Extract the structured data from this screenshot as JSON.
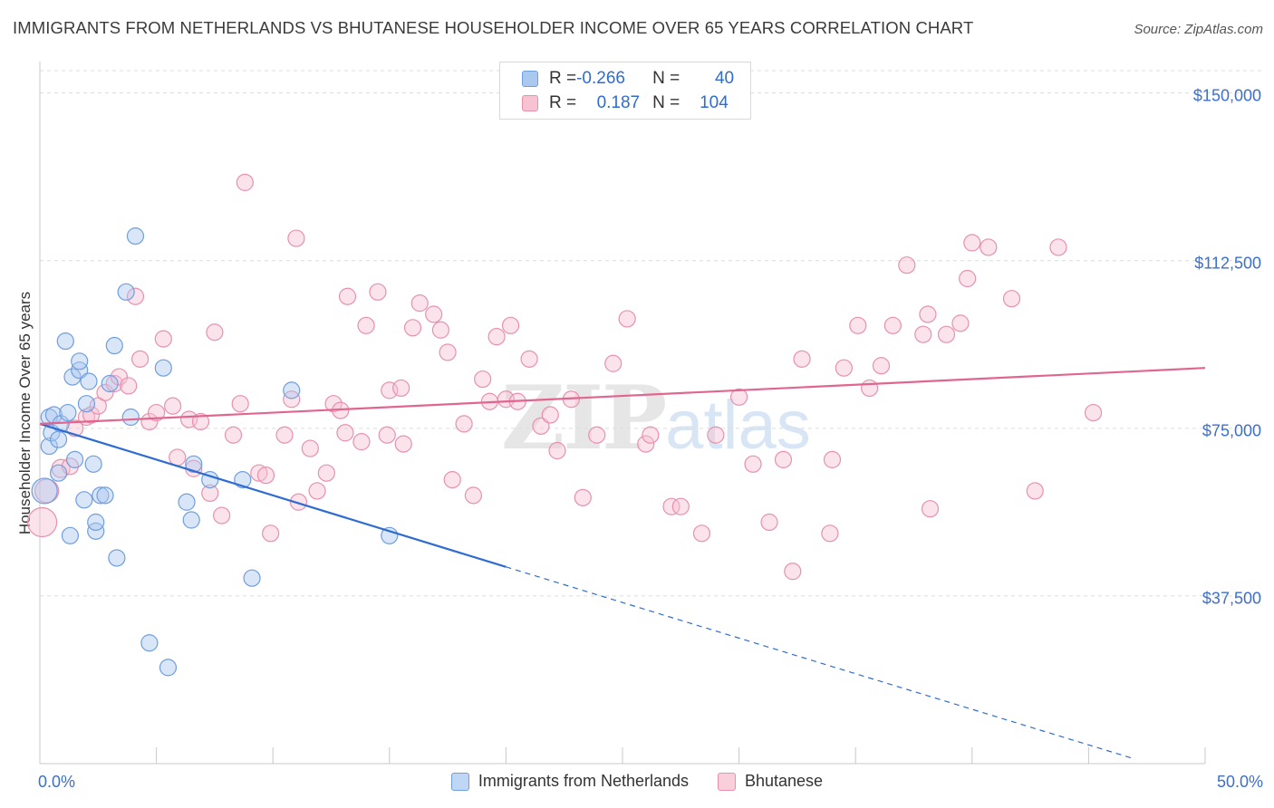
{
  "title": "IMMIGRANTS FROM NETHERLANDS VS BHUTANESE HOUSEHOLDER INCOME OVER 65 YEARS CORRELATION CHART",
  "source": "Source: ZipAtlas.com",
  "watermark": {
    "left": "ZIP",
    "right": "atlas"
  },
  "legend": {
    "rows": [
      {
        "r_label": "R = ",
        "r_value": "-0.266",
        "n_label": "N = ",
        "n_value": "40",
        "color": "#aac8f0",
        "border": "#6f9ee0"
      },
      {
        "r_label": "R = ",
        "r_value": "0.187",
        "n_label": "N = ",
        "n_value": "104",
        "color": "#f7c2d2",
        "border": "#e891ad"
      }
    ]
  },
  "bottom_legend": [
    "Immigrants from Netherlands",
    "Bhutanese"
  ],
  "chart_data": {
    "type": "scatter",
    "title": "IMMIGRANTS FROM NETHERLANDS VS BHUTANESE HOUSEHOLDER INCOME OVER 65 YEARS CORRELATION CHART",
    "xlabel": "",
    "ylabel": "Householder Income Over 65 years",
    "xlim": [
      0,
      50
    ],
    "ylim": [
      0,
      155000
    ],
    "x_tick_labels": [
      "0.0%",
      "50.0%"
    ],
    "y_ticks": [
      37500,
      75000,
      112500,
      150000
    ],
    "y_tick_labels": [
      "$37,500",
      "$75,000",
      "$112,500",
      "$150,000"
    ],
    "grid": true,
    "colors": {
      "blue": "#6f9ee0",
      "blue_fill": "#aac8f0",
      "pink": "#e891ad",
      "pink_fill": "#f7c2d2",
      "blue_line": "#2f6cd0",
      "pink_line": "#e0668f"
    },
    "series": [
      {
        "name": "Immigrants from Netherlands",
        "color": "blue",
        "trend": {
          "x0": 0,
          "y0": 76000,
          "x1": 20,
          "y1": 44000,
          "dash_to_x": 47,
          "dash_to_y": 1000
        },
        "points": [
          [
            0.2,
            61000,
            14
          ],
          [
            0.4,
            71000,
            9
          ],
          [
            0.4,
            77500,
            9
          ],
          [
            0.5,
            74000,
            9
          ],
          [
            0.6,
            78000,
            9
          ],
          [
            0.8,
            72500,
            9
          ],
          [
            0.8,
            65000,
            9
          ],
          [
            0.9,
            76000,
            9
          ],
          [
            1.1,
            94500,
            9
          ],
          [
            1.2,
            78500,
            9
          ],
          [
            1.3,
            51000,
            9
          ],
          [
            1.4,
            86500,
            9
          ],
          [
            1.5,
            68000,
            9
          ],
          [
            1.7,
            88000,
            9
          ],
          [
            1.7,
            90000,
            9
          ],
          [
            1.9,
            59000,
            9
          ],
          [
            2.0,
            80500,
            9
          ],
          [
            2.1,
            85500,
            9
          ],
          [
            2.3,
            67000,
            9
          ],
          [
            2.4,
            52000,
            9
          ],
          [
            2.4,
            54000,
            9
          ],
          [
            2.6,
            60000,
            9
          ],
          [
            2.8,
            60000,
            9
          ],
          [
            3.0,
            85000,
            9
          ],
          [
            3.2,
            93500,
            9
          ],
          [
            3.3,
            46000,
            9
          ],
          [
            3.7,
            105500,
            9
          ],
          [
            3.9,
            77500,
            9
          ],
          [
            4.1,
            118000,
            9
          ],
          [
            4.7,
            27000,
            9
          ],
          [
            5.3,
            88500,
            9
          ],
          [
            5.5,
            21500,
            9
          ],
          [
            6.3,
            58500,
            9
          ],
          [
            6.5,
            54500,
            9
          ],
          [
            6.6,
            67000,
            9
          ],
          [
            7.3,
            63500,
            9
          ],
          [
            8.7,
            63500,
            9
          ],
          [
            9.1,
            41500,
            9
          ],
          [
            10.8,
            83500,
            9
          ],
          [
            15.0,
            51000,
            9
          ]
        ]
      },
      {
        "name": "Bhutanese",
        "color": "pink",
        "trend": {
          "x0": 0,
          "y0": 76000,
          "x1": 50,
          "y1": 88500
        },
        "points": [
          [
            0.1,
            54000,
            16
          ],
          [
            0.3,
            61000,
            13
          ],
          [
            0.9,
            66000,
            10
          ],
          [
            1.3,
            66500,
            9
          ],
          [
            1.5,
            75000,
            9
          ],
          [
            2.0,
            77500,
            9
          ],
          [
            2.2,
            78000,
            9
          ],
          [
            2.5,
            80000,
            9
          ],
          [
            2.8,
            83000,
            9
          ],
          [
            3.2,
            85000,
            9
          ],
          [
            3.4,
            86500,
            9
          ],
          [
            3.8,
            84500,
            9
          ],
          [
            4.1,
            104500,
            9
          ],
          [
            4.3,
            90500,
            9
          ],
          [
            4.7,
            76500,
            9
          ],
          [
            5.0,
            78500,
            9
          ],
          [
            5.3,
            95000,
            9
          ],
          [
            5.7,
            80000,
            9
          ],
          [
            5.9,
            68500,
            9
          ],
          [
            6.4,
            77000,
            9
          ],
          [
            6.6,
            66000,
            9
          ],
          [
            6.9,
            76500,
            9
          ],
          [
            7.3,
            60500,
            9
          ],
          [
            7.5,
            96500,
            9
          ],
          [
            7.8,
            55500,
            9
          ],
          [
            8.3,
            73500,
            9
          ],
          [
            8.6,
            80500,
            9
          ],
          [
            8.8,
            130000,
            9
          ],
          [
            9.4,
            65000,
            9
          ],
          [
            9.7,
            64500,
            9
          ],
          [
            9.9,
            51500,
            9
          ],
          [
            10.5,
            73500,
            9
          ],
          [
            10.8,
            81500,
            9
          ],
          [
            11.0,
            117500,
            9
          ],
          [
            11.1,
            58500,
            9
          ],
          [
            11.6,
            70500,
            9
          ],
          [
            11.9,
            61000,
            9
          ],
          [
            12.3,
            65000,
            9
          ],
          [
            12.6,
            80500,
            9
          ],
          [
            12.9,
            79000,
            9
          ],
          [
            13.1,
            74000,
            9
          ],
          [
            13.2,
            104500,
            9
          ],
          [
            13.8,
            72000,
            9
          ],
          [
            14.0,
            98000,
            9
          ],
          [
            14.5,
            105500,
            9
          ],
          [
            14.9,
            73500,
            9
          ],
          [
            15.0,
            83500,
            9
          ],
          [
            15.5,
            84000,
            9
          ],
          [
            15.6,
            71500,
            9
          ],
          [
            16.0,
            97500,
            9
          ],
          [
            16.3,
            103000,
            9
          ],
          [
            16.9,
            100500,
            9
          ],
          [
            17.2,
            97000,
            9
          ],
          [
            17.5,
            92000,
            9
          ],
          [
            17.7,
            63500,
            9
          ],
          [
            18.2,
            76000,
            9
          ],
          [
            18.6,
            60000,
            9
          ],
          [
            19.0,
            86000,
            9
          ],
          [
            19.3,
            81000,
            9
          ],
          [
            19.6,
            95500,
            9
          ],
          [
            20.0,
            81500,
            9
          ],
          [
            20.2,
            98000,
            9
          ],
          [
            20.5,
            81000,
            9
          ],
          [
            21.0,
            90500,
            9
          ],
          [
            21.5,
            75500,
            9
          ],
          [
            21.9,
            78000,
            9
          ],
          [
            22.2,
            70000,
            9
          ],
          [
            22.8,
            81500,
            9
          ],
          [
            23.3,
            59500,
            9
          ],
          [
            23.9,
            73500,
            9
          ],
          [
            24.6,
            89500,
            9
          ],
          [
            25.2,
            99500,
            9
          ],
          [
            26.0,
            71500,
            9
          ],
          [
            26.2,
            73500,
            9
          ],
          [
            27.1,
            57500,
            9
          ],
          [
            27.5,
            57500,
            9
          ],
          [
            28.4,
            51500,
            9
          ],
          [
            29.0,
            73500,
            9
          ],
          [
            30.0,
            82000,
            9
          ],
          [
            30.6,
            67000,
            9
          ],
          [
            31.3,
            54000,
            9
          ],
          [
            31.9,
            68000,
            9
          ],
          [
            32.3,
            43000,
            9
          ],
          [
            32.7,
            90500,
            9
          ],
          [
            33.9,
            51500,
            9
          ],
          [
            34.0,
            68000,
            9
          ],
          [
            34.5,
            88500,
            9
          ],
          [
            35.1,
            98000,
            9
          ],
          [
            35.6,
            84000,
            9
          ],
          [
            36.1,
            89000,
            9
          ],
          [
            36.6,
            98000,
            9
          ],
          [
            37.2,
            111500,
            9
          ],
          [
            37.9,
            96000,
            9
          ],
          [
            38.1,
            100500,
            9
          ],
          [
            38.2,
            57000,
            9
          ],
          [
            38.9,
            96000,
            9
          ],
          [
            39.5,
            98500,
            9
          ],
          [
            39.8,
            108500,
            9
          ],
          [
            40.0,
            116500,
            9
          ],
          [
            40.7,
            115500,
            9
          ],
          [
            41.7,
            104000,
            9
          ],
          [
            42.7,
            61000,
            9
          ],
          [
            43.7,
            115500,
            9
          ],
          [
            45.2,
            78500,
            9
          ]
        ]
      }
    ]
  }
}
